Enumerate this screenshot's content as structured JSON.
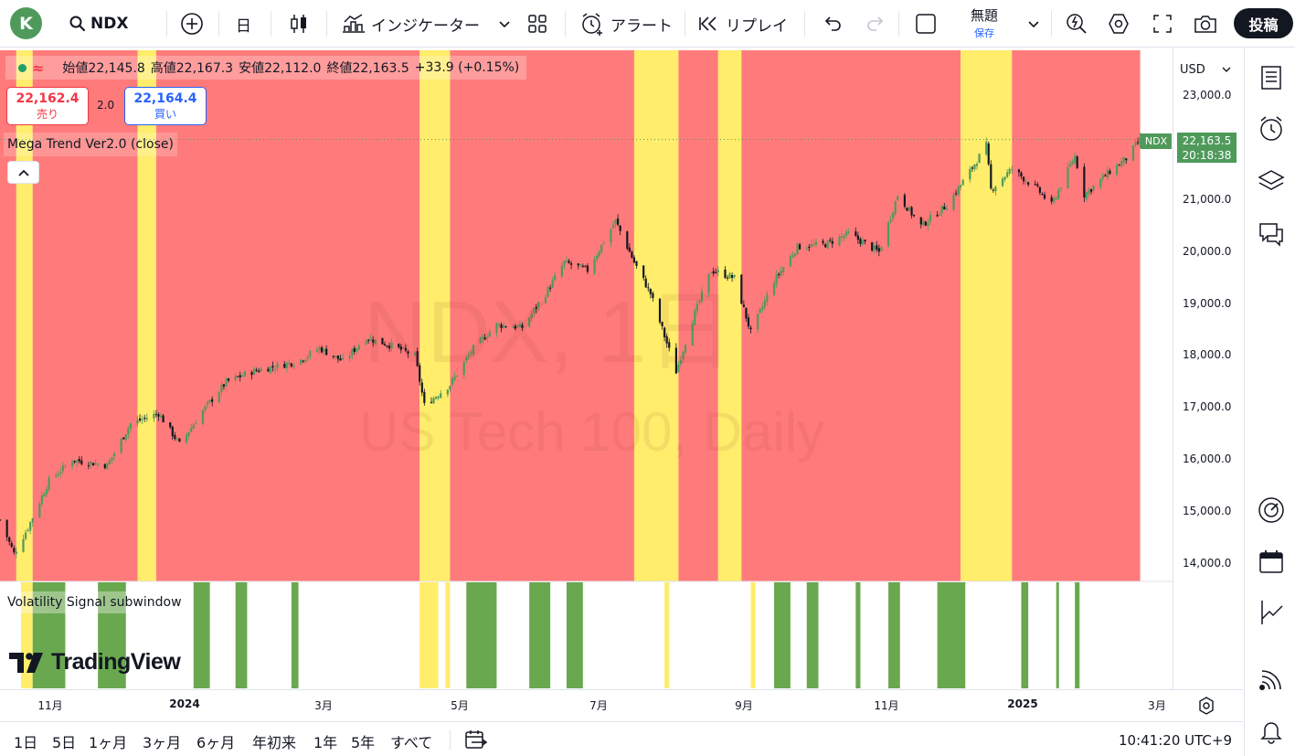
{
  "toolbar": {
    "avatar_letter": "K",
    "symbol": "NDX",
    "interval": "日",
    "indicators_label": "インジケーター",
    "alert_label": "アラート",
    "replay_label": "リプレイ",
    "layout_name": "無題",
    "layout_saved": "保存",
    "publish_label": "投稿"
  },
  "legend": {
    "open_label": "始値",
    "open": "22,145.8",
    "high_label": "高値",
    "high": "22,167.3",
    "low_label": "安値",
    "low": "22,112.0",
    "close_label": "終値",
    "close": "22,163.5",
    "change": "+33.9 (+0.15%)"
  },
  "trade": {
    "sell_price": "22,162.4",
    "sell_label": "売り",
    "spread": "2.0",
    "buy_price": "22,164.4",
    "buy_label": "買い"
  },
  "indicator_name": "Mega Trend Ver2.0 (close)",
  "subwindow_name": "Volatility Signal subwindow",
  "watermark": {
    "title": "NDX, 1日",
    "subtitle": "US Tech 100, Daily"
  },
  "logo_text": "TradingView",
  "price_scale": {
    "currency": "USD",
    "ticks": [
      "23,000.0",
      "22,000.0",
      "21,000.0",
      "20,000.0",
      "19,000.0",
      "18,000.0",
      "17,000.0",
      "16,000.0",
      "15,000.0",
      "14,000.0"
    ],
    "last_price": "22,163.5",
    "countdown": "20:18:38",
    "symbol_badge": "NDX"
  },
  "time_axis": {
    "labels": [
      {
        "text": "11月",
        "bold": false
      },
      {
        "text": "2024",
        "bold": true
      },
      {
        "text": "3月",
        "bold": false
      },
      {
        "text": "5月",
        "bold": false
      },
      {
        "text": "7月",
        "bold": false
      },
      {
        "text": "9月",
        "bold": false
      },
      {
        "text": "11月",
        "bold": false
      },
      {
        "text": "2025",
        "bold": true
      },
      {
        "text": "3月",
        "bold": false
      }
    ]
  },
  "ranges": [
    "1日",
    "5日",
    "1ヶ月",
    "3ヶ月",
    "6ヶ月",
    "年初来",
    "1年",
    "5年",
    "すべて"
  ],
  "clock": "10:41:20 UTC+9",
  "colors": {
    "bull": "#4f9a5b",
    "bear": "#131722",
    "trend_down_bg": "#ff7b7b",
    "trend_up_bg": "#ffed6b",
    "signal_green": "#6aa84f",
    "accent": "#2962ff"
  },
  "chart_data": {
    "type": "candlestick",
    "symbol": "NDX",
    "x_range": [
      "2023-10-20",
      "2025-02-28"
    ],
    "ylim": [
      13800,
      23200
    ],
    "trend_regimes": [
      {
        "start": "2023-10-20",
        "end": "2023-10-27",
        "state": "down"
      },
      {
        "start": "2023-10-27",
        "end": "2023-11-03",
        "state": "up"
      },
      {
        "start": "2023-11-03",
        "end": "2023-12-18",
        "state": "down"
      },
      {
        "start": "2023-12-18",
        "end": "2023-12-26",
        "state": "up"
      },
      {
        "start": "2023-12-26",
        "end": "2024-04-17",
        "state": "down"
      },
      {
        "start": "2024-04-17",
        "end": "2024-04-30",
        "state": "up"
      },
      {
        "start": "2024-04-30",
        "end": "2024-07-18",
        "state": "down"
      },
      {
        "start": "2024-07-18",
        "end": "2024-08-06",
        "state": "up"
      },
      {
        "start": "2024-08-06",
        "end": "2024-08-23",
        "state": "down"
      },
      {
        "start": "2024-08-23",
        "end": "2024-09-02",
        "state": "up"
      },
      {
        "start": "2024-09-02",
        "end": "2024-12-05",
        "state": "down"
      },
      {
        "start": "2024-12-05",
        "end": "2024-12-27",
        "state": "up"
      },
      {
        "start": "2024-12-27",
        "end": "2025-02-20",
        "state": "down"
      }
    ],
    "volatility_signals": [
      {
        "start": "2023-10-29",
        "end": "2023-11-03",
        "state": "yellow"
      },
      {
        "start": "2023-11-03",
        "end": "2023-11-17",
        "state": "green"
      },
      {
        "start": "2023-12-01",
        "end": "2023-12-13",
        "state": "green"
      },
      {
        "start": "2024-01-11",
        "end": "2024-01-18",
        "state": "green"
      },
      {
        "start": "2024-01-29",
        "end": "2024-02-03",
        "state": "green"
      },
      {
        "start": "2024-02-22",
        "end": "2024-02-25",
        "state": "green"
      },
      {
        "start": "2024-04-17",
        "end": "2024-04-25",
        "state": "yellow"
      },
      {
        "start": "2024-04-28",
        "end": "2024-04-30",
        "state": "yellow"
      },
      {
        "start": "2024-05-07",
        "end": "2024-05-20",
        "state": "green"
      },
      {
        "start": "2024-06-03",
        "end": "2024-06-12",
        "state": "green"
      },
      {
        "start": "2024-06-19",
        "end": "2024-06-26",
        "state": "green"
      },
      {
        "start": "2024-07-31",
        "end": "2024-08-02",
        "state": "yellow"
      },
      {
        "start": "2024-09-06",
        "end": "2024-09-08",
        "state": "yellow"
      },
      {
        "start": "2024-09-16",
        "end": "2024-09-23",
        "state": "green"
      },
      {
        "start": "2024-09-30",
        "end": "2024-10-05",
        "state": "green"
      },
      {
        "start": "2024-10-21",
        "end": "2024-10-23",
        "state": "green"
      },
      {
        "start": "2024-11-04",
        "end": "2024-11-09",
        "state": "green"
      },
      {
        "start": "2024-11-25",
        "end": "2024-12-07",
        "state": "green"
      },
      {
        "start": "2024-12-31",
        "end": "2025-01-03",
        "state": "green"
      },
      {
        "start": "2025-01-15",
        "end": "2025-01-16",
        "state": "green"
      },
      {
        "start": "2025-01-23",
        "end": "2025-01-25",
        "state": "green"
      }
    ],
    "closes": [
      {
        "date": "2023-10-20",
        "close": 14850
      },
      {
        "date": "2023-10-26",
        "close": 14200
      },
      {
        "date": "2023-11-01",
        "close": 14700
      },
      {
        "date": "2023-11-10",
        "close": 15600
      },
      {
        "date": "2023-11-20",
        "close": 16000
      },
      {
        "date": "2023-12-05",
        "close": 15900
      },
      {
        "date": "2023-12-15",
        "close": 16700
      },
      {
        "date": "2023-12-27",
        "close": 16900
      },
      {
        "date": "2024-01-05",
        "close": 16300
      },
      {
        "date": "2024-01-15",
        "close": 16950
      },
      {
        "date": "2024-01-25",
        "close": 17500
      },
      {
        "date": "2024-02-05",
        "close": 17700
      },
      {
        "date": "2024-02-15",
        "close": 17800
      },
      {
        "date": "2024-02-25",
        "close": 17900
      },
      {
        "date": "2024-03-05",
        "close": 18150
      },
      {
        "date": "2024-03-15",
        "close": 17900
      },
      {
        "date": "2024-03-25",
        "close": 18350
      },
      {
        "date": "2024-04-05",
        "close": 18200
      },
      {
        "date": "2024-04-15",
        "close": 18000
      },
      {
        "date": "2024-04-19",
        "close": 17050
      },
      {
        "date": "2024-04-30",
        "close": 17450
      },
      {
        "date": "2024-05-10",
        "close": 18150
      },
      {
        "date": "2024-05-20",
        "close": 18600
      },
      {
        "date": "2024-05-31",
        "close": 18550
      },
      {
        "date": "2024-06-10",
        "close": 19200
      },
      {
        "date": "2024-06-18",
        "close": 19800
      },
      {
        "date": "2024-06-28",
        "close": 19650
      },
      {
        "date": "2024-07-10",
        "close": 20600
      },
      {
        "date": "2024-07-18",
        "close": 19800
      },
      {
        "date": "2024-07-25",
        "close": 19200
      },
      {
        "date": "2024-08-05",
        "close": 17700
      },
      {
        "date": "2024-08-12",
        "close": 18700
      },
      {
        "date": "2024-08-20",
        "close": 19650
      },
      {
        "date": "2024-08-30",
        "close": 19500
      },
      {
        "date": "2024-09-06",
        "close": 18450
      },
      {
        "date": "2024-09-16",
        "close": 19450
      },
      {
        "date": "2024-09-26",
        "close": 20100
      },
      {
        "date": "2024-10-08",
        "close": 20150
      },
      {
        "date": "2024-10-18",
        "close": 20350
      },
      {
        "date": "2024-10-31",
        "close": 20000
      },
      {
        "date": "2024-11-08",
        "close": 21100
      },
      {
        "date": "2024-11-18",
        "close": 20500
      },
      {
        "date": "2024-11-29",
        "close": 20900
      },
      {
        "date": "2024-12-09",
        "close": 21550
      },
      {
        "date": "2024-12-16",
        "close": 22050
      },
      {
        "date": "2024-12-18",
        "close": 21200
      },
      {
        "date": "2024-12-27",
        "close": 21600
      },
      {
        "date": "2025-01-07",
        "close": 21200
      },
      {
        "date": "2025-01-13",
        "close": 20900
      },
      {
        "date": "2025-01-23",
        "close": 21850
      },
      {
        "date": "2025-01-27",
        "close": 21100
      },
      {
        "date": "2025-02-07",
        "close": 21550
      },
      {
        "date": "2025-02-14",
        "close": 21800
      },
      {
        "date": "2025-02-20",
        "close": 22163.5
      }
    ]
  }
}
